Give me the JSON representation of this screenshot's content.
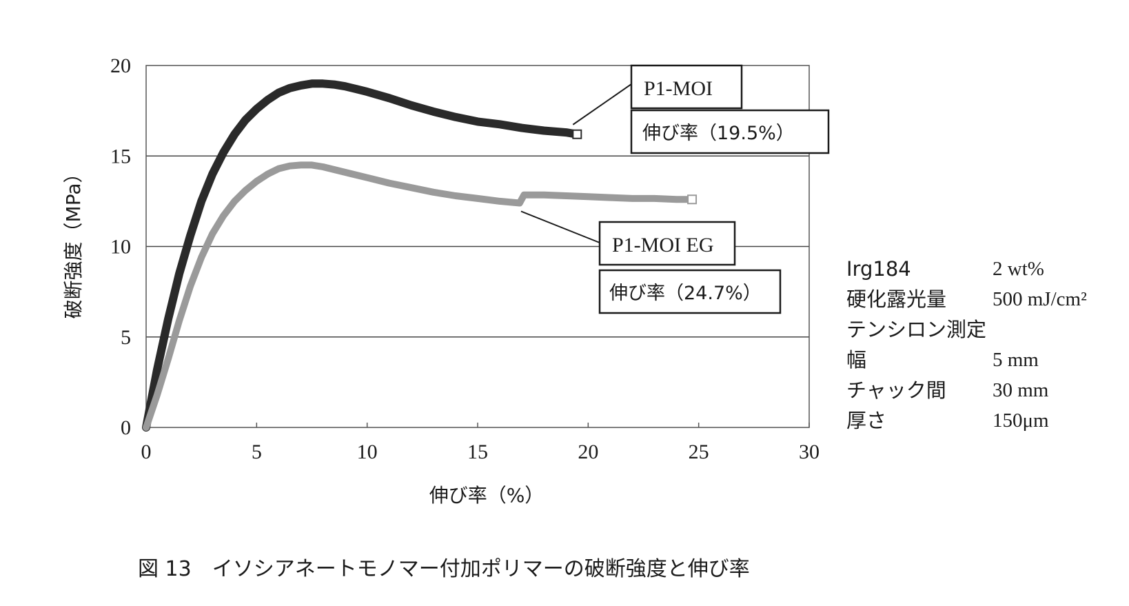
{
  "chart_data": {
    "type": "line",
    "xlabel": "伸び率（%）",
    "ylabel": "破断強度（MPa）",
    "xlim": [
      0,
      30
    ],
    "ylim": [
      0,
      20
    ],
    "x_ticks": [
      "0",
      "5",
      "10",
      "15",
      "20",
      "25",
      "30"
    ],
    "y_ticks": [
      "0",
      "5",
      "10",
      "15",
      "20"
    ],
    "grid": "horizontal",
    "series": [
      {
        "name": "P1-MOI",
        "annotation": "伸び率（19.5%）",
        "color": "#2a2a2a",
        "x": [
          0,
          0.5,
          1,
          1.5,
          2,
          2.5,
          3,
          3.5,
          4,
          4.5,
          5,
          5.5,
          6,
          6.5,
          7,
          7.5,
          8,
          8.5,
          9,
          9.5,
          10,
          11,
          12,
          13,
          14,
          15,
          16,
          17,
          18,
          19,
          19.5
        ],
        "y": [
          0,
          3.2,
          6.0,
          8.5,
          10.6,
          12.5,
          14.0,
          15.2,
          16.2,
          17.0,
          17.6,
          18.1,
          18.5,
          18.75,
          18.9,
          19.0,
          19.0,
          18.95,
          18.85,
          18.7,
          18.55,
          18.2,
          17.8,
          17.45,
          17.15,
          16.9,
          16.75,
          16.55,
          16.4,
          16.3,
          16.2
        ]
      },
      {
        "name": "P1-MOI EG",
        "annotation": "伸び率（24.7%）",
        "color": "#9a9a9a",
        "x": [
          0,
          0.5,
          1,
          1.5,
          2,
          2.5,
          3,
          3.5,
          4,
          4.5,
          5,
          5.5,
          6,
          6.5,
          7,
          7.5,
          8,
          9,
          10,
          11,
          12,
          13,
          14,
          15,
          16,
          16.9,
          17.1,
          18,
          19,
          20,
          21,
          22,
          23,
          24,
          24.7
        ],
        "y": [
          0,
          1.8,
          3.8,
          5.9,
          7.8,
          9.4,
          10.7,
          11.7,
          12.5,
          13.1,
          13.6,
          14.0,
          14.3,
          14.45,
          14.5,
          14.5,
          14.4,
          14.1,
          13.8,
          13.5,
          13.25,
          13.0,
          12.8,
          12.65,
          12.5,
          12.4,
          12.85,
          12.85,
          12.8,
          12.75,
          12.7,
          12.65,
          12.65,
          12.6,
          12.6
        ]
      }
    ],
    "labels": {
      "p1_moi_name": "P1-MOI",
      "p1_moi_elong": "伸び率（19.5%）",
      "p1_moi_eg_name": "P1-MOI EG",
      "p1_moi_eg_elong": "伸び率（24.7%）"
    }
  },
  "conditions": [
    {
      "label": "Irg184",
      "value": "2 wt%"
    },
    {
      "label": "硬化露光量",
      "value": "500 mJ/cm²"
    },
    {
      "label": "テンシロン測定",
      "value": ""
    },
    {
      "label": "幅",
      "value": "5 mm"
    },
    {
      "label": "チャック間",
      "value": "30 mm"
    },
    {
      "label": "厚さ",
      "value": "150μm"
    }
  ],
  "caption": "図 13　イソシアネートモノマー付加ポリマーの破断強度と伸び率"
}
